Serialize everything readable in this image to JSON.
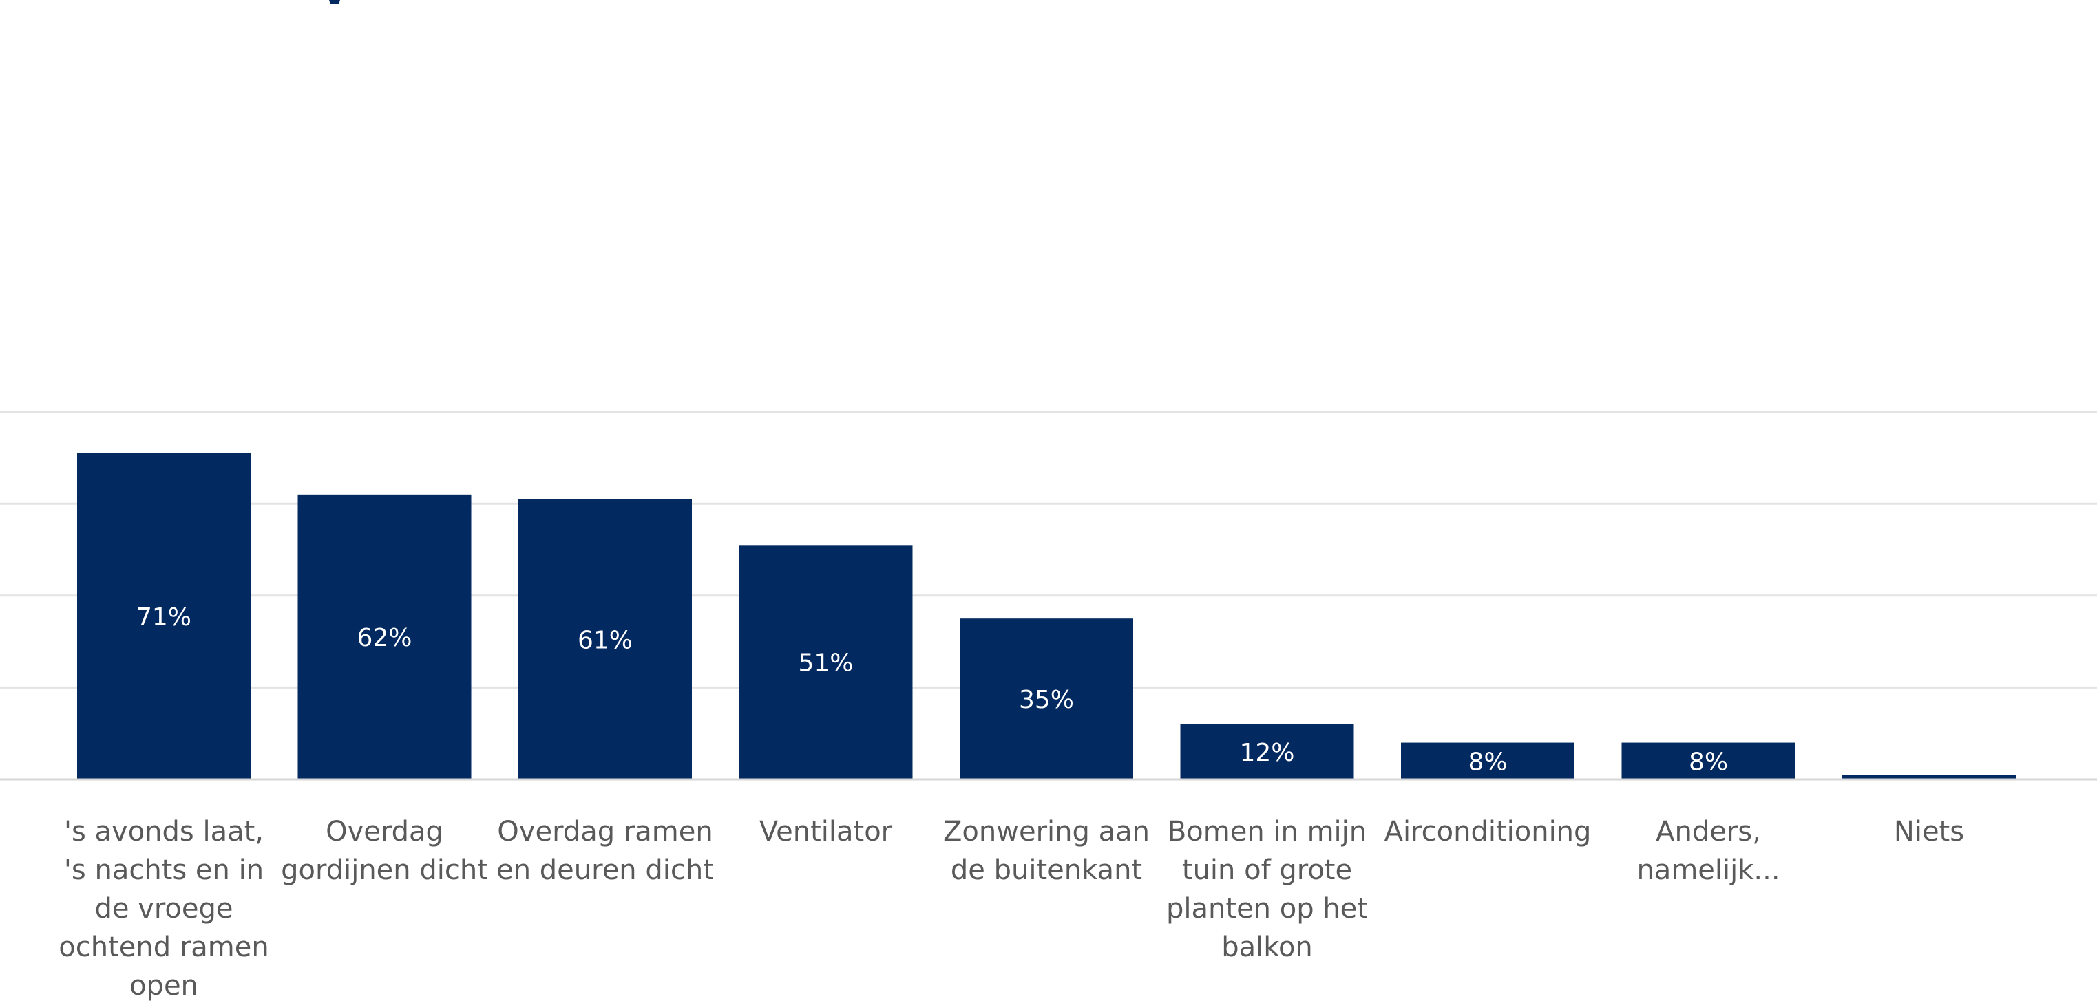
{
  "chart_data": {
    "type": "bar",
    "categories": [
      [
        "'s avonds laat,",
        "'s nachts en in",
        "de vroege",
        "ochtend ramen",
        "open"
      ],
      [
        "Overdag",
        "gordijnen dicht"
      ],
      [
        "Overdag ramen",
        "en deuren dicht"
      ],
      [
        "Ventilator"
      ],
      [
        "Zonwering aan",
        "de buitenkant"
      ],
      [
        "Bomen in mijn",
        "tuin of grote",
        "planten op het",
        "balkon"
      ],
      [
        "Airconditioning"
      ],
      [
        "Anders,",
        "namelijk..."
      ],
      [
        "Niets"
      ]
    ],
    "values": [
      71,
      62,
      61,
      51,
      35,
      12,
      8,
      8,
      1
    ],
    "data_labels": [
      "71%",
      "62%",
      "61%",
      "51%",
      "35%",
      "12%",
      "8%",
      "8%",
      ""
    ],
    "ylim": [
      0,
      80
    ],
    "grid": true,
    "bar_color": "#022a61",
    "label_color": "#ffffff",
    "axis_text_color": "#595959"
  }
}
